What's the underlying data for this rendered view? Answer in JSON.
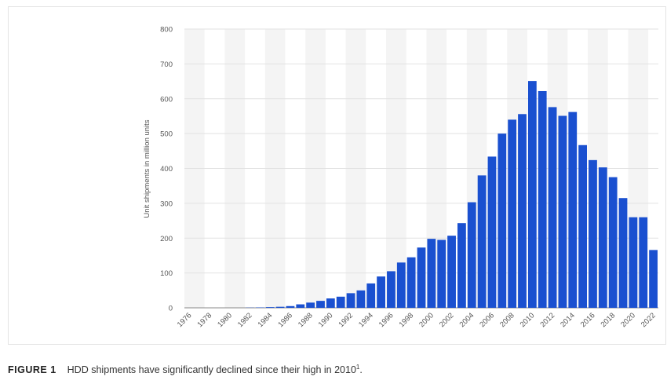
{
  "chart_data": {
    "type": "bar",
    "y_label": "Unit shipments in million units",
    "categories": [
      "1976",
      null,
      "1978",
      null,
      "1980",
      null,
      "1982",
      null,
      "1984",
      null,
      "1986",
      null,
      "1988",
      null,
      "1990",
      null,
      "1992",
      null,
      "1994",
      null,
      "1996",
      null,
      "1998",
      null,
      "2000",
      null,
      "2002",
      null,
      "2004",
      null,
      "2006",
      null,
      "2008",
      null,
      "2010",
      null,
      "2012",
      null,
      "2014",
      null,
      "2016",
      null,
      "2018",
      null,
      "2020",
      null,
      "2022"
    ],
    "values": [
      0,
      0,
      0,
      0,
      0,
      0,
      0.5,
      1,
      2,
      3,
      5,
      10,
      15,
      20,
      27,
      32,
      42,
      50,
      70,
      90,
      105,
      130,
      145,
      173,
      198,
      195,
      207,
      243,
      303,
      380,
      434,
      500,
      540,
      556,
      651,
      622,
      576,
      551,
      562,
      467,
      424,
      403,
      375,
      315,
      260,
      260,
      166
    ],
    "color": "#1a50d0",
    "ylim": [
      0,
      800
    ],
    "yticks": [
      0,
      100,
      200,
      300,
      400,
      500,
      600,
      700,
      800
    ],
    "grid": true
  },
  "figure": {
    "label": "FIGURE 1",
    "text": "HDD shipments have significantly declined since their high in 2010",
    "footnote_ref": "1",
    "end": "."
  }
}
